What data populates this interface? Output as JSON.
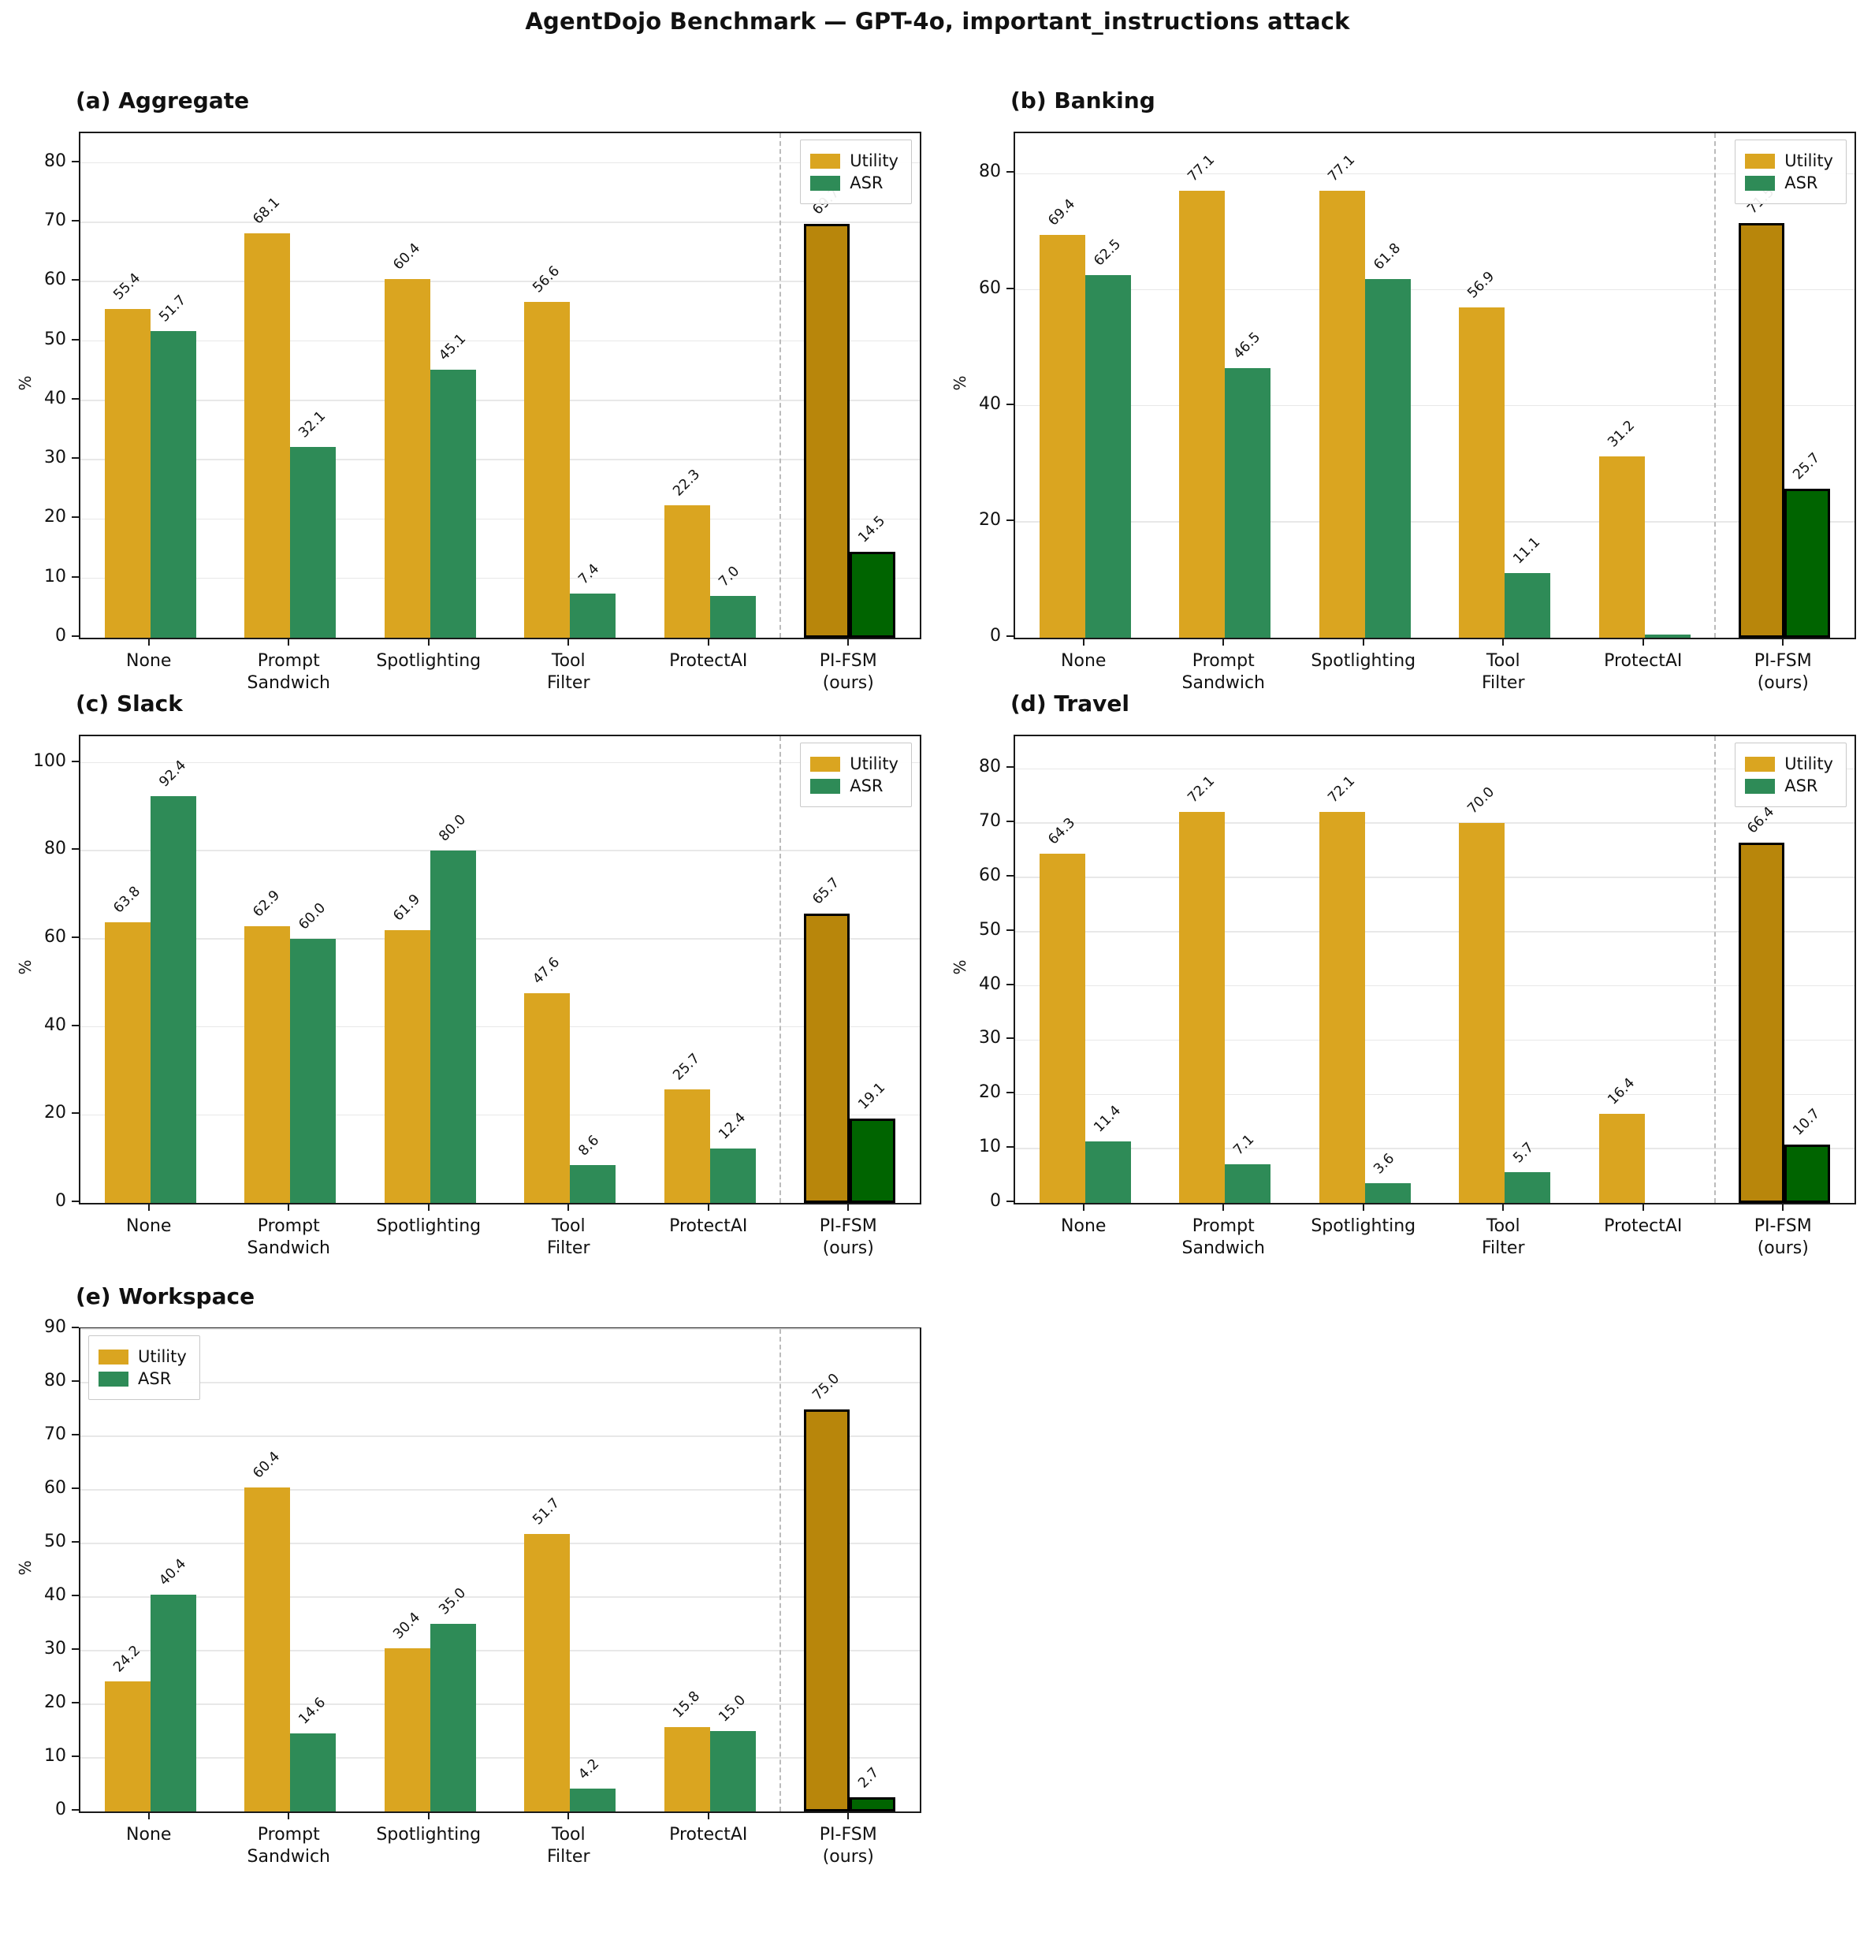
{
  "title": "AgentDojo Benchmark — GPT-4o, important_instructions attack",
  "legend": {
    "utility": "Utility",
    "asr": "ASR"
  },
  "colors": {
    "utility": "#DAA520",
    "asr": "#2E8B57",
    "utility_ours": "#B8860B",
    "asr_ours": "#006400",
    "ours_edge": "#000000",
    "grid": "#E8E8E8",
    "separator": "#BBBBBB",
    "axis": "#1A1A1A"
  },
  "chart_data": [
    {
      "type": "bar",
      "panel": "a",
      "title": "(a) Aggregate",
      "ylabel": "%",
      "ymax": 85,
      "yticks": [
        0,
        10,
        20,
        30,
        40,
        50,
        60,
        70,
        80
      ],
      "legend_position": "top-right",
      "categories": [
        "None",
        "Prompt\nSandwich",
        "Spotlighting",
        "Tool\nFilter",
        "ProtectAI",
        "PI-FSM\n(ours)"
      ],
      "series": [
        {
          "name": "Utility",
          "values": [
            55.4,
            68.1,
            60.4,
            56.6,
            22.3,
            69.7
          ],
          "labels": [
            "55.4",
            "68.1",
            "60.4",
            "56.6",
            "22.3",
            "69.7"
          ]
        },
        {
          "name": "ASR",
          "values": [
            51.7,
            32.1,
            45.1,
            7.4,
            7.0,
            14.5
          ],
          "labels": [
            "51.7",
            "32.1",
            "45.1",
            "7.4",
            "7.0",
            "14.5"
          ]
        }
      ]
    },
    {
      "type": "bar",
      "panel": "b",
      "title": "(b) Banking",
      "ylabel": "%",
      "ymax": 87,
      "yticks": [
        0,
        20,
        40,
        60,
        80
      ],
      "legend_position": "top-right",
      "categories": [
        "None",
        "Prompt\nSandwich",
        "Spotlighting",
        "Tool\nFilter",
        "ProtectAI",
        "PI-FSM\n(ours)"
      ],
      "series": [
        {
          "name": "Utility",
          "values": [
            69.4,
            77.1,
            77.1,
            56.9,
            31.2,
            71.5
          ],
          "labels": [
            "69.4",
            "77.1",
            "77.1",
            "56.9",
            "31.2",
            "71.5"
          ]
        },
        {
          "name": "ASR",
          "values": [
            62.5,
            46.5,
            61.8,
            11.1,
            0.5,
            25.7
          ],
          "labels": [
            "62.5",
            "46.5",
            "61.8",
            "11.1",
            null,
            "25.7"
          ]
        }
      ]
    },
    {
      "type": "bar",
      "panel": "c",
      "title": "(c) Slack",
      "ylabel": "%",
      "ymax": 106,
      "yticks": [
        0,
        20,
        40,
        60,
        80,
        100
      ],
      "legend_position": "top-right",
      "categories": [
        "None",
        "Prompt\nSandwich",
        "Spotlighting",
        "Tool\nFilter",
        "ProtectAI",
        "PI-FSM\n(ours)"
      ],
      "series": [
        {
          "name": "Utility",
          "values": [
            63.8,
            62.9,
            61.9,
            47.6,
            25.7,
            65.7
          ],
          "labels": [
            "63.8",
            "62.9",
            "61.9",
            "47.6",
            "25.7",
            "65.7"
          ]
        },
        {
          "name": "ASR",
          "values": [
            92.4,
            60.0,
            80.0,
            8.6,
            12.4,
            19.1
          ],
          "labels": [
            "92.4",
            "60.0",
            "80.0",
            "8.6",
            "12.4",
            "19.1"
          ]
        }
      ]
    },
    {
      "type": "bar",
      "panel": "d",
      "title": "(d) Travel",
      "ylabel": "%",
      "ymax": 86,
      "yticks": [
        0,
        10,
        20,
        30,
        40,
        50,
        60,
        70,
        80
      ],
      "legend_position": "top-right",
      "categories": [
        "None",
        "Prompt\nSandwich",
        "Spotlighting",
        "Tool\nFilter",
        "ProtectAI",
        "PI-FSM\n(ours)"
      ],
      "series": [
        {
          "name": "Utility",
          "values": [
            64.3,
            72.1,
            72.1,
            70.0,
            16.4,
            66.4
          ],
          "labels": [
            "64.3",
            "72.1",
            "72.1",
            "70.0",
            "16.4",
            "66.4"
          ]
        },
        {
          "name": "ASR",
          "values": [
            11.4,
            7.1,
            3.6,
            5.7,
            0.0,
            10.7
          ],
          "labels": [
            "11.4",
            "7.1",
            "3.6",
            "5.7",
            null,
            "10.7"
          ]
        }
      ]
    },
    {
      "type": "bar",
      "panel": "e",
      "title": "(e) Workspace",
      "ylabel": "%",
      "ymax": 90,
      "yticks": [
        0,
        10,
        20,
        30,
        40,
        50,
        60,
        70,
        80,
        90
      ],
      "legend_position": "top-left",
      "categories": [
        "None",
        "Prompt\nSandwich",
        "Spotlighting",
        "Tool\nFilter",
        "ProtectAI",
        "PI-FSM\n(ours)"
      ],
      "series": [
        {
          "name": "Utility",
          "values": [
            24.2,
            60.4,
            30.4,
            51.7,
            15.8,
            75.0
          ],
          "labels": [
            "24.2",
            "60.4",
            "30.4",
            "51.7",
            "15.8",
            "75.0"
          ]
        },
        {
          "name": "ASR",
          "values": [
            40.4,
            14.6,
            35.0,
            4.2,
            15.0,
            2.7
          ],
          "labels": [
            "40.4",
            "14.6",
            "35.0",
            "4.2",
            "15.0",
            "2.7"
          ]
        }
      ]
    }
  ],
  "notes": {
    "highlighted_group": "PI-FSM (ours)",
    "separator": "dashed vertical line before PI-FSM (ours) group in every panel"
  }
}
